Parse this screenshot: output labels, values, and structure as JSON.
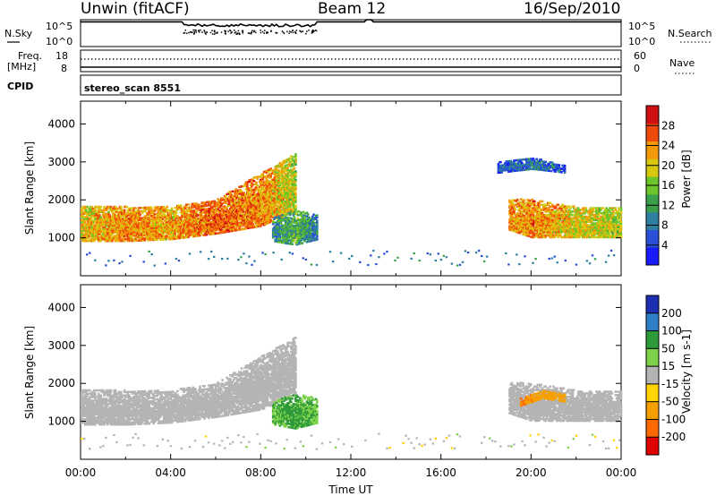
{
  "header": {
    "station": "Unwin (fitACF)",
    "beam": "Beam 12",
    "date": "16/Sep/2010"
  },
  "colors": {
    "noise_trace": "#000000",
    "ground_scatter": "#b4b4b4"
  },
  "chart_data": [
    {
      "id": "noise_panel",
      "type": "line",
      "left_label": "N.Sky",
      "left_ticks": [
        "10^5",
        "10^0"
      ],
      "right_label": "N.Search",
      "right_ticks": [
        "10^5",
        "10^0"
      ]
    },
    {
      "id": "freq_panel",
      "type": "line",
      "left_label": "Freq.",
      "left_unit": "[MHz]",
      "left_ticks": [
        "18",
        "8"
      ],
      "right_label": "Nave",
      "right_ticks": [
        "60",
        "0"
      ]
    },
    {
      "id": "cpid_panel",
      "type": "table",
      "label": "CPID",
      "text": "stereo_scan 8551"
    },
    {
      "id": "power",
      "type": "heatmap",
      "ylabel": "Slant Range [km]",
      "ylim": [
        0,
        4600
      ],
      "yticks": [
        1000,
        2000,
        3000,
        4000
      ],
      "xlim": [
        0,
        24
      ],
      "colorbar": {
        "label": "Power [dB]",
        "range": [
          0,
          32
        ],
        "ticks": [
          "4",
          "8",
          "12",
          "16",
          "20",
          "24",
          "28"
        ]
      },
      "scatter_regions": [
        {
          "x": [
            0,
            2,
            4,
            6,
            8,
            9.5
          ],
          "y_low": [
            900,
            900,
            950,
            1100,
            1300,
            1700
          ],
          "y_high": [
            1800,
            1800,
            1800,
            2000,
            2700,
            3200
          ],
          "values": [
            20,
            24,
            22,
            26,
            24,
            18
          ]
        },
        {
          "x": [
            8.5,
            9.5,
            10.5
          ],
          "y_low": [
            900,
            800,
            950
          ],
          "y_high": [
            1500,
            1700,
            1600
          ],
          "values": [
            10,
            14,
            8
          ]
        },
        {
          "x": [
            19,
            20,
            22,
            24
          ],
          "y_low": [
            1200,
            1000,
            1000,
            1000
          ],
          "y_high": [
            2000,
            2000,
            1800,
            1800
          ],
          "values": [
            22,
            24,
            20,
            18
          ]
        },
        {
          "x": [
            18.5,
            20,
            21.5
          ],
          "y_low": [
            2700,
            2800,
            2700
          ],
          "y_high": [
            3000,
            3100,
            2900
          ],
          "values": [
            6,
            8,
            6
          ]
        }
      ]
    },
    {
      "id": "velocity",
      "type": "heatmap",
      "ylabel": "Slant Range [km]",
      "xlabel": "Time UT",
      "ylim": [
        0,
        4600
      ],
      "yticks": [
        1000,
        2000,
        3000,
        4000
      ],
      "xlim": [
        0,
        24
      ],
      "xticks": [
        "00:00",
        "04:00",
        "08:00",
        "12:00",
        "16:00",
        "20:00",
        "00:00"
      ],
      "colorbar": {
        "label": "Velocity [m s-1]",
        "ticks": [
          "200",
          "100",
          "50",
          "15",
          "-15",
          "-50",
          "-100",
          "-200"
        ]
      },
      "scatter_regions": [
        {
          "x": [
            0,
            2,
            4,
            6,
            8,
            9.5
          ],
          "y_low": [
            900,
            900,
            950,
            1100,
            1300,
            1700
          ],
          "y_high": [
            1800,
            1800,
            1800,
            2000,
            2700,
            3200
          ],
          "values": [
            0,
            0,
            0,
            0,
            0,
            0
          ]
        },
        {
          "x": [
            8.5,
            9.5,
            10.5
          ],
          "y_low": [
            900,
            800,
            950
          ],
          "y_high": [
            1500,
            1700,
            1600
          ],
          "values": [
            30,
            40,
            25
          ]
        },
        {
          "x": [
            19,
            20,
            22,
            24
          ],
          "y_low": [
            1200,
            1000,
            1000,
            1000
          ],
          "y_high": [
            2000,
            2000,
            1800,
            1800
          ],
          "values": [
            0,
            0,
            0,
            0
          ]
        },
        {
          "x": [
            19.5,
            20.5,
            21.5
          ],
          "y_low": [
            1400,
            1600,
            1500
          ],
          "y_high": [
            1600,
            1800,
            1700
          ],
          "values": [
            -80,
            -60,
            -50
          ]
        }
      ]
    }
  ]
}
